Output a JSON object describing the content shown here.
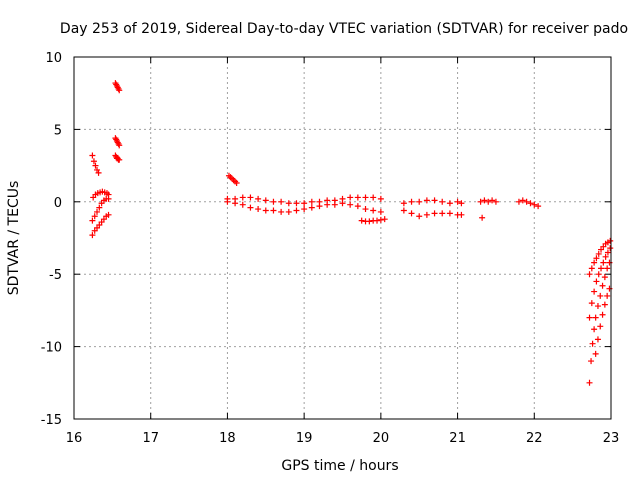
{
  "chart_data": {
    "type": "scatter",
    "title": "Day 253 of 2019, Sidereal Day-to-day VTEC variation (SDTVAR) for receiver pado",
    "xlabel": "GPS time / hours",
    "ylabel": "SDTVAR / TECUs",
    "xlim": [
      16,
      23
    ],
    "ylim": [
      -15,
      10
    ],
    "xticks": [
      16,
      17,
      18,
      19,
      20,
      21,
      22,
      23
    ],
    "yticks": [
      -15,
      -10,
      -5,
      0,
      5,
      10
    ],
    "xtick_labels": [
      "16",
      "17",
      "18",
      "19",
      "20",
      "21",
      "22",
      "23"
    ],
    "ytick_labels": [
      "-15",
      "-10",
      "-5",
      "0",
      "5",
      "10"
    ],
    "grid": true,
    "marker": "+",
    "color": "#ff0000",
    "series": [
      {
        "name": "seg-16a-upper",
        "x": [
          16.24,
          16.26,
          16.28,
          16.3,
          16.32
        ],
        "y": [
          3.2,
          2.8,
          2.5,
          2.2,
          2.0
        ]
      },
      {
        "name": "seg-16a-mid",
        "x": [
          16.25,
          16.28,
          16.31,
          16.34,
          16.37,
          16.4,
          16.43,
          16.45
        ],
        "y": [
          0.3,
          0.5,
          0.6,
          0.65,
          0.7,
          0.65,
          0.6,
          0.5
        ]
      },
      {
        "name": "seg-16a-low1",
        "x": [
          16.24,
          16.27,
          16.3,
          16.33,
          16.36,
          16.39,
          16.42,
          16.45
        ],
        "y": [
          -1.3,
          -1.0,
          -0.7,
          -0.4,
          -0.1,
          0.1,
          0.2,
          0.2
        ]
      },
      {
        "name": "seg-16a-low2",
        "x": [
          16.24,
          16.27,
          16.3,
          16.33,
          16.36,
          16.39,
          16.42,
          16.45
        ],
        "y": [
          -2.3,
          -2.0,
          -1.8,
          -1.6,
          -1.4,
          -1.2,
          -1.0,
          -0.9
        ]
      },
      {
        "name": "seg-16b-top",
        "x": [
          16.54,
          16.55,
          16.56,
          16.57,
          16.58,
          16.59
        ],
        "y": [
          8.2,
          8.1,
          8.0,
          7.9,
          7.8,
          7.7
        ]
      },
      {
        "name": "seg-16b-mid",
        "x": [
          16.54,
          16.55,
          16.56,
          16.57,
          16.58,
          16.59
        ],
        "y": [
          4.4,
          4.3,
          4.2,
          4.1,
          4.0,
          3.9
        ]
      },
      {
        "name": "seg-16b-low",
        "x": [
          16.54,
          16.55,
          16.56,
          16.57,
          16.58,
          16.59
        ],
        "y": [
          3.2,
          3.1,
          3.0,
          3.0,
          2.9,
          2.9
        ]
      },
      {
        "name": "seg-18-rise",
        "x": [
          18.02,
          18.04,
          18.06,
          18.08,
          18.1,
          18.12
        ],
        "y": [
          1.8,
          1.7,
          1.6,
          1.5,
          1.4,
          1.3
        ]
      },
      {
        "name": "seg-18-20-upper",
        "x": [
          18.0,
          18.1,
          18.2,
          18.3,
          18.4,
          18.5,
          18.6,
          18.7,
          18.8,
          18.9,
          19.0,
          19.1,
          19.2,
          19.3,
          19.4,
          19.5,
          19.6,
          19.7,
          19.8,
          19.9,
          20.0
        ],
        "y": [
          0.2,
          0.2,
          0.3,
          0.3,
          0.2,
          0.1,
          0.0,
          0.0,
          -0.1,
          -0.1,
          -0.1,
          0.0,
          0.0,
          0.1,
          0.1,
          0.2,
          0.3,
          0.3,
          0.3,
          0.3,
          0.2
        ]
      },
      {
        "name": "seg-18-20-lower",
        "x": [
          18.0,
          18.1,
          18.2,
          18.3,
          18.4,
          18.5,
          18.6,
          18.7,
          18.8,
          18.9,
          19.0,
          19.1,
          19.2,
          19.3,
          19.4,
          19.5,
          19.6,
          19.7,
          19.8,
          19.9,
          20.0
        ],
        "y": [
          0.0,
          -0.1,
          -0.2,
          -0.4,
          -0.5,
          -0.6,
          -0.6,
          -0.7,
          -0.7,
          -0.6,
          -0.5,
          -0.4,
          -0.3,
          -0.2,
          -0.2,
          -0.1,
          -0.2,
          -0.3,
          -0.5,
          -0.6,
          -0.7
        ]
      },
      {
        "name": "seg-19-20-low",
        "x": [
          19.75,
          19.8,
          19.85,
          19.9,
          19.95,
          20.0,
          20.05
        ],
        "y": [
          -1.3,
          -1.35,
          -1.35,
          -1.3,
          -1.3,
          -1.25,
          -1.2
        ]
      },
      {
        "name": "seg-20-21-upper",
        "x": [
          20.3,
          20.4,
          20.5,
          20.6,
          20.7,
          20.8,
          20.9,
          21.0,
          21.05
        ],
        "y": [
          -0.1,
          0.0,
          0.0,
          0.1,
          0.1,
          0.0,
          -0.1,
          0.0,
          -0.1
        ]
      },
      {
        "name": "seg-20-21-lower",
        "x": [
          20.3,
          20.4,
          20.5,
          20.6,
          20.7,
          20.8,
          20.9,
          21.0,
          21.05
        ],
        "y": [
          -0.6,
          -0.8,
          -1.0,
          -0.9,
          -0.8,
          -0.8,
          -0.8,
          -0.9,
          -0.9
        ]
      },
      {
        "name": "seg-21-outlier",
        "x": [
          21.32
        ],
        "y": [
          -1.1
        ]
      },
      {
        "name": "seg-21-22",
        "x": [
          21.3,
          21.35,
          21.4,
          21.45,
          21.5,
          21.8,
          21.85,
          21.9,
          21.95,
          22.0,
          22.05
        ],
        "y": [
          0.0,
          0.1,
          0.0,
          0.1,
          0.0,
          0.0,
          0.1,
          0.0,
          -0.1,
          -0.2,
          -0.3
        ]
      },
      {
        "name": "seg-23-a",
        "x": [
          22.72,
          22.74,
          22.76,
          22.78,
          22.8,
          22.83,
          22.86,
          22.89,
          22.92,
          22.95,
          22.98
        ],
        "y": [
          -12.5,
          -11.0,
          -9.8,
          -8.8,
          -8.0,
          -7.2,
          -6.5,
          -5.8,
          -5.2,
          -4.6,
          -4.2
        ]
      },
      {
        "name": "seg-23-b",
        "x": [
          22.72,
          22.75,
          22.78,
          22.81,
          22.84,
          22.87,
          22.9,
          22.93,
          22.96,
          22.99
        ],
        "y": [
          -8.0,
          -7.0,
          -6.2,
          -5.5,
          -5.0,
          -4.6,
          -4.2,
          -3.8,
          -3.5,
          -3.2
        ]
      },
      {
        "name": "seg-23-c",
        "x": [
          22.72,
          22.75,
          22.78,
          22.81,
          22.84,
          22.87,
          22.9,
          22.93,
          22.96,
          22.99
        ],
        "y": [
          -5.0,
          -4.6,
          -4.2,
          -3.9,
          -3.6,
          -3.3,
          -3.1,
          -2.9,
          -2.8,
          -2.7
        ]
      },
      {
        "name": "seg-23-d",
        "x": [
          22.8,
          22.83,
          22.86,
          22.89,
          22.92,
          22.95,
          22.98
        ],
        "y": [
          -10.5,
          -9.5,
          -8.6,
          -7.8,
          -7.1,
          -6.5,
          -6.0
        ]
      }
    ]
  }
}
